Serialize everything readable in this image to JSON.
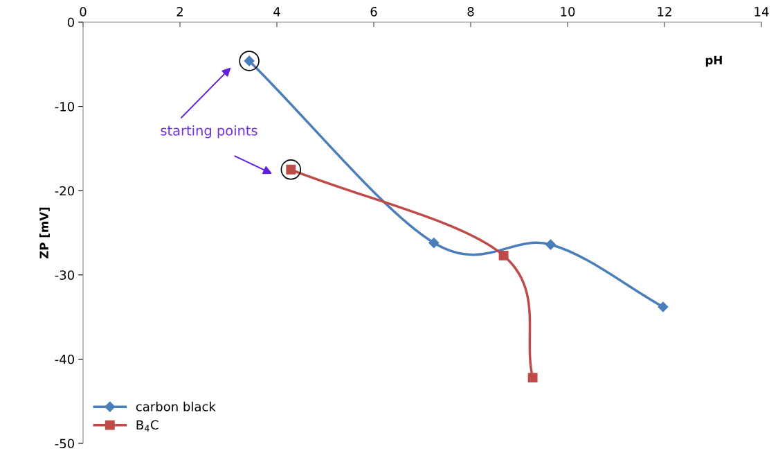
{
  "chart_data": {
    "type": "line",
    "xlabel": "pH",
    "ylabel": "ZP [mV]",
    "xlim": [
      0,
      14
    ],
    "xticks": [
      0,
      2,
      4,
      6,
      8,
      10,
      12,
      14
    ],
    "ylim": [
      -50,
      0
    ],
    "yticks": [
      -50,
      -40,
      -30,
      -20,
      -10,
      0
    ],
    "grid": false,
    "legend": "bottom left",
    "line_style": "solid",
    "series": [
      {
        "name": "carbon black",
        "color": "#4a7ebb",
        "marker": "diamond",
        "x": [
          3.43,
          7.24,
          9.65,
          11.97
        ],
        "values": [
          -4.6,
          -26.2,
          -26.4,
          -33.8
        ]
      },
      {
        "name": "B$_{4}$C",
        "color": "#be4b48",
        "marker": "square",
        "x": [
          4.29,
          8.68,
          9.28
        ],
        "values": [
          -17.5,
          -27.7,
          -42.2
        ]
      }
    ],
    "annotations": [
      "starting points"
    ]
  }
}
